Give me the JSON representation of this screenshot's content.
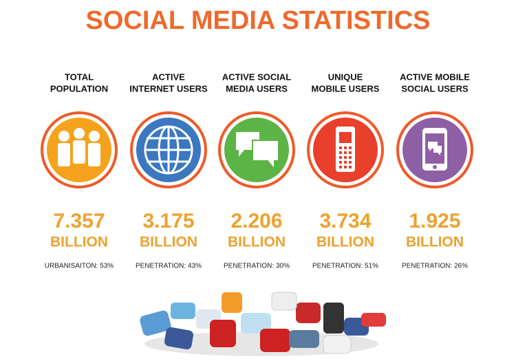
{
  "header": {
    "title": "SOCIAL MEDIA STATISTICS"
  },
  "stats": [
    {
      "label_lines": [
        "TOTAL",
        "POPULATION"
      ],
      "value": "7.357",
      "unit": "BILLION",
      "note": "URBANISAITON: 53%",
      "color": "#f5a21c"
    },
    {
      "label_lines": [
        "ACTIVE",
        "INTERNET USERS"
      ],
      "value": "3.175",
      "unit": "BILLION",
      "note": "PENETRATION: 43%",
      "color": "#3b78c0"
    },
    {
      "label_lines": [
        "ACTIVE SOCIAL",
        "MEDIA USERS"
      ],
      "value": "2.206",
      "unit": "BILLION",
      "note": "PENETRATION: 30%",
      "color": "#5cb446"
    },
    {
      "label_lines": [
        "UNIQUE",
        "MOBILE USERS"
      ],
      "value": "3.734",
      "unit": "BILLION",
      "note": "PENETRATION: 51%",
      "color": "#e8402b"
    },
    {
      "label_lines": [
        "ACTIVE MOBILE",
        "SOCIAL USERS"
      ],
      "value": "1.925",
      "unit": "BILLION",
      "note": "PENETRATION: 26%",
      "color": "#8f5fa6"
    }
  ]
}
